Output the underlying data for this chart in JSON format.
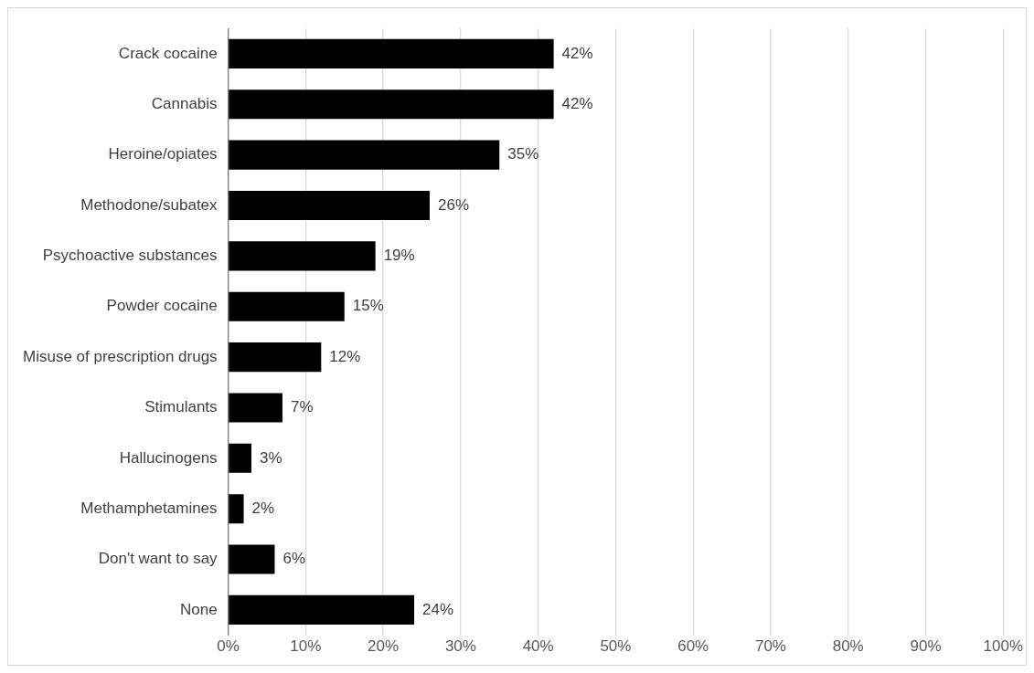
{
  "chart_data": {
    "type": "bar",
    "orientation": "horizontal",
    "categories": [
      "Crack cocaine",
      "Cannabis",
      "Heroine/opiates",
      "Methodone/subatex",
      "Psychoactive substances",
      "Powder cocaine",
      "Misuse of prescription drugs",
      "Stimulants",
      "Hallucinogens",
      "Methamphetamines",
      "Don't want to say",
      "None"
    ],
    "values": [
      42,
      42,
      35,
      26,
      19,
      15,
      12,
      7,
      3,
      2,
      6,
      24
    ],
    "value_labels": [
      "42%",
      "42%",
      "35%",
      "26%",
      "19%",
      "15%",
      "12%",
      "7%",
      "3%",
      "2%",
      "6%",
      "24%"
    ],
    "color": "#000000",
    "xlim": [
      0,
      100
    ],
    "xticks": [
      {
        "value": 0,
        "label": "0%"
      },
      {
        "value": 10,
        "label": "10%"
      },
      {
        "value": 20,
        "label": "20%"
      },
      {
        "value": 30,
        "label": "30%"
      },
      {
        "value": 40,
        "label": "40%"
      },
      {
        "value": 50,
        "label": "50%"
      },
      {
        "value": 60,
        "label": "60%"
      },
      {
        "value": 70,
        "label": "70%"
      },
      {
        "value": 80,
        "label": "80%"
      },
      {
        "value": 90,
        "label": "90%"
      },
      {
        "value": 100,
        "label": "100%"
      }
    ],
    "grid": "x",
    "legend": false
  }
}
